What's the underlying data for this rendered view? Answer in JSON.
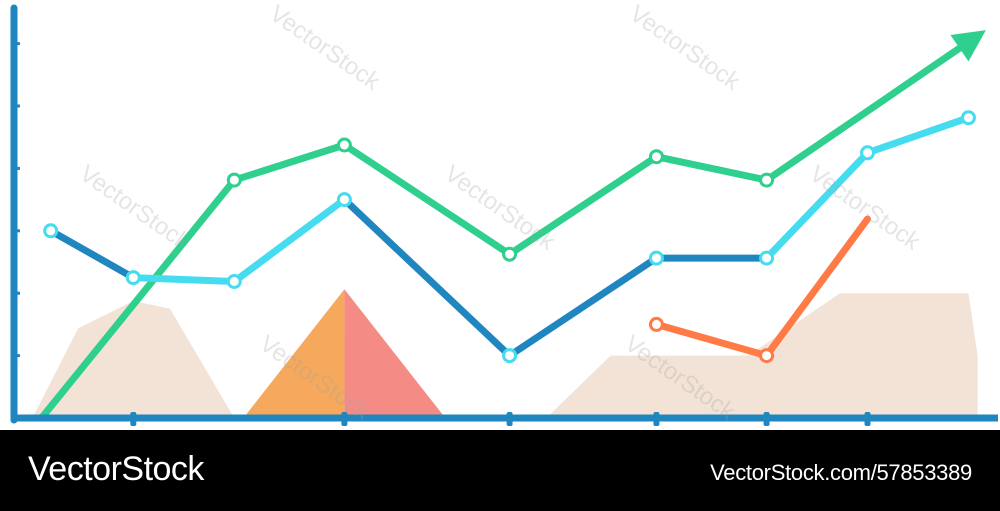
{
  "watermark": {
    "text": "VectorStock"
  },
  "footer": {
    "brand": "VectorStock",
    "image_id": "VectorStock.com/57853389"
  },
  "colors": {
    "axis": "#1f86c0",
    "green": "#2fcf8e",
    "cyan": "#45dcf0",
    "blue": "#1f86c0",
    "orange": "#ff7a45",
    "area_beige": "#f3e3d6",
    "triangle_left": "#f6a85c",
    "triangle_right": "#f48c85",
    "footer_bg": "#000000"
  },
  "chart_data": {
    "type": "line",
    "title": "",
    "xlabel": "",
    "ylabel": "",
    "grid": false,
    "xlim": [
      0,
      10
    ],
    "ylim": [
      0,
      10
    ],
    "series": [
      {
        "key": "green",
        "values": [
          [
            0.3,
            0.0
          ],
          [
            2.4,
            6.1
          ],
          [
            3.6,
            7.0
          ],
          [
            5.4,
            4.2
          ],
          [
            7.0,
            6.7
          ],
          [
            8.2,
            6.1
          ],
          [
            10.5,
            9.8
          ]
        ],
        "points": [
          [
            2.4,
            6.1
          ],
          [
            3.6,
            7.0
          ],
          [
            5.4,
            4.2
          ],
          [
            7.0,
            6.7
          ],
          [
            8.2,
            6.1
          ]
        ],
        "arrow": true
      },
      {
        "key": "blue",
        "values": [
          [
            0.4,
            4.8
          ],
          [
            1.3,
            3.6
          ],
          [
            2.4,
            3.5
          ],
          [
            3.6,
            5.6
          ],
          [
            5.4,
            1.6
          ],
          [
            7.0,
            4.1
          ],
          [
            8.2,
            4.1
          ],
          [
            9.3,
            6.8
          ],
          [
            10.4,
            7.7
          ]
        ],
        "segments": [
          {
            "color": "blue",
            "range": [
              0,
              1
            ]
          },
          {
            "color": "cyan",
            "range": [
              1,
              3
            ]
          },
          {
            "color": "blue",
            "range": [
              3,
              6
            ]
          },
          {
            "color": "cyan",
            "range": [
              6,
              8
            ]
          }
        ],
        "points": [
          [
            0.4,
            4.8
          ],
          [
            1.3,
            3.6
          ],
          [
            2.4,
            3.5
          ],
          [
            3.6,
            5.6
          ],
          [
            5.4,
            1.6
          ],
          [
            7.0,
            4.1
          ],
          [
            8.2,
            4.1
          ],
          [
            9.3,
            6.8
          ],
          [
            10.4,
            7.7
          ]
        ]
      },
      {
        "key": "orange",
        "values": [
          [
            7.0,
            2.4
          ],
          [
            8.2,
            1.6
          ],
          [
            9.3,
            5.1
          ]
        ],
        "points": [
          [
            7.0,
            2.4
          ],
          [
            8.2,
            1.6
          ]
        ]
      }
    ],
    "areas": [
      {
        "color": "area_beige",
        "polygon": [
          [
            0.2,
            0.0
          ],
          [
            0.7,
            2.3
          ],
          [
            1.3,
            3.0
          ],
          [
            1.7,
            2.8
          ],
          [
            2.4,
            0.0
          ]
        ]
      },
      {
        "color": "area_beige",
        "polygon": [
          [
            5.8,
            0.0
          ],
          [
            6.5,
            1.6
          ],
          [
            8.0,
            1.6
          ],
          [
            9.0,
            3.2
          ],
          [
            10.4,
            3.2
          ],
          [
            10.5,
            1.6
          ],
          [
            10.5,
            0.0
          ]
        ]
      }
    ],
    "triangle": {
      "left": [
        [
          2.5,
          0.0
        ],
        [
          3.6,
          3.3
        ],
        [
          3.6,
          0.0
        ]
      ],
      "right": [
        [
          3.6,
          0.0
        ],
        [
          3.6,
          3.3
        ],
        [
          4.7,
          0.0
        ]
      ]
    },
    "x_ticks": [
      1.3,
      3.6,
      5.4,
      7.0,
      8.2,
      9.3
    ],
    "y_ticks": [
      1.6,
      3.2,
      4.8,
      6.4,
      8.0,
      9.6
    ]
  }
}
